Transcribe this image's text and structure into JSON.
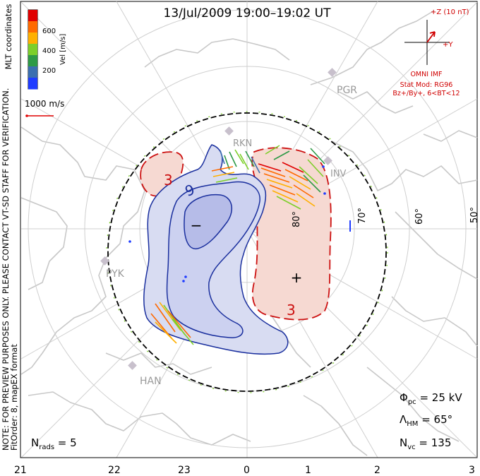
{
  "title": "13/Jul/2009 19:00–19:02 UT",
  "colorbar": {
    "label": "Vel [m/s]",
    "ticks": [
      "600",
      "400",
      "200"
    ],
    "colors": [
      "#e00000",
      "#ff6a00",
      "#ffb000",
      "#7dcf2a",
      "#2e9a46",
      "#3b6fb0",
      "#1f3cff"
    ]
  },
  "coordinates_label": "MLT coordinates",
  "scale_vector_label": "1000 m/s",
  "imf": {
    "z_label": "+Z (10 nT)",
    "y_label": "+Y",
    "source": "OMNI IMF",
    "stat_mod": "Stat Mod: RG96",
    "condition": "Bz+/By+, 6<BT<12"
  },
  "preview_note": "NOTE: FOR PREVIEW PURPOSES ONLY. PLEASE CONTACT VT-SD STAFF FOR VERIFICATION.",
  "fit_order": "FitOrder: 8, mapEX format",
  "stats": {
    "phi_symbol": "Φ",
    "phi_sub": "pc",
    "phi_value": " = 25 kV",
    "lambda_symbol": "Λ",
    "lambda_sub": "HM",
    "lambda_value": " = 65°",
    "nvc_symbol": "N",
    "nvc_sub": "vc",
    "nvc_value": " = 135",
    "nrads_symbol": "N",
    "nrads_sub": "rads",
    "nrads_value": " = 5"
  },
  "mlt_ticks": [
    "21",
    "22",
    "23",
    "0",
    "1",
    "2",
    "3"
  ],
  "lat_labels": [
    "80°",
    "70°",
    "60°",
    "50°"
  ],
  "radars": [
    "PGR",
    "RKN",
    "INV",
    "PYK",
    "HAN"
  ],
  "contours": {
    "neg_label": "9",
    "pos_label_top": "3",
    "pos_label_bottom": "3",
    "min_marker": "−",
    "max_marker": "+"
  },
  "map_colors": {
    "negative_fill": "#d8dcf2",
    "negative_core": "#b6bce8",
    "negative_line": "#1a2f9e",
    "positive_fill": "#f6d9d2",
    "positive_line": "#cc1010",
    "coast": "#c8c8c8",
    "grid": "#cfcfcf"
  }
}
